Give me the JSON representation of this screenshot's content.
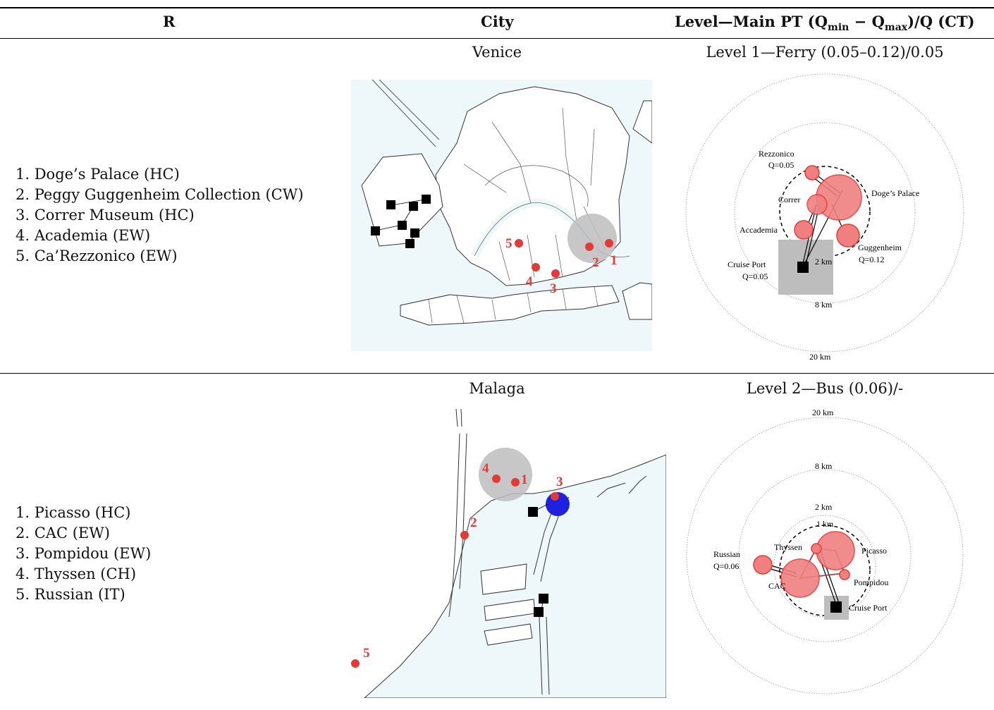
{
  "table": {
    "headers": {
      "r": "R",
      "city": "City",
      "level": {
        "prefix": "Level—Main PT (Q",
        "sub_min": "min",
        "middle": " − Q",
        "sub_max": "max",
        "suffix": ")/Q (CT)"
      }
    },
    "rows": [
      {
        "city": "Venice",
        "level": "Level 1—Ferry (0.05–0.12)/0.05",
        "attractions": [
          "1. Doge’s Palace (HC)",
          "2. Peggy Guggenheim Collection (CW)",
          "3. Correr Museum (HC)",
          "4. Academia (EW)",
          "5. Ca’Rezzonico (EW)"
        ],
        "map_labels": [
          "1",
          "2",
          "3",
          "4",
          "5"
        ],
        "diagram": {
          "rings": [
            "2 km",
            "8 km",
            "20 km"
          ],
          "nodes": {
            "rezzonico": "Rezzonico",
            "rezzonico_q": "Q=0.05",
            "doges": "Doge’s Palace",
            "correr": "Correr",
            "accademia": "Accademia",
            "guggenheim": "Guggenheim",
            "guggenheim_q": "Q=0.12",
            "port": "Cruise Port",
            "port_q": "Q=0.05"
          }
        }
      },
      {
        "city": "Malaga",
        "level": "Level 2—Bus (0.06)/-",
        "attractions": [
          "1. Picasso (HC)",
          "2. CAC (EW)",
          "3. Pompidou (EW)",
          "4. Thyssen (CH)",
          "5. Russian (IT)"
        ],
        "map_labels": [
          "1",
          "2",
          "3",
          "4",
          "5"
        ],
        "diagram": {
          "rings": [
            "20 km",
            "8 km",
            "2 km",
            "1 km"
          ],
          "nodes": {
            "russian": "Russian",
            "russian_q": "Q=0.06",
            "thyssen": "Thyssen",
            "picasso": "Picasso",
            "pompidou": "Pompidou",
            "cac": "CAC",
            "port": "Cruise Port"
          }
        }
      }
    ]
  },
  "colors": {
    "water": "#eef8fb",
    "attraction": "#e53935",
    "attraction_fill": "#f08080",
    "cluster": "#bdbdbd",
    "port": "#000000",
    "pompidou_marker": "#1e22e0"
  }
}
